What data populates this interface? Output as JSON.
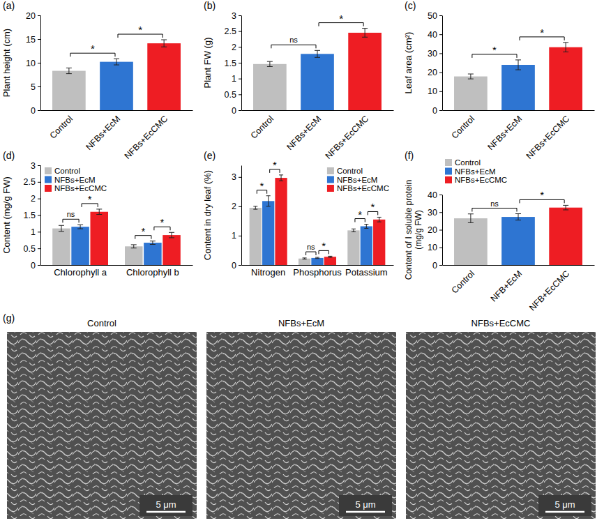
{
  "chart_data": [
    {
      "type": "bar",
      "label": "(a)",
      "y_label": "Plant height (cm)",
      "categories": [
        "Control",
        "NFBs+EcM",
        "NFBs+EcCMC"
      ],
      "values": [
        8.3,
        10.2,
        14.1
      ],
      "errors": [
        0.6,
        0.65,
        0.75
      ],
      "colors": [
        "#bfbfbf",
        "#2e75d2",
        "#ee1d23"
      ],
      "ylim": [
        0,
        20
      ],
      "yticks": [
        0,
        5,
        10,
        15,
        20
      ],
      "annotations": [
        {
          "from": 0,
          "to": 1,
          "text": "*"
        },
        {
          "from": 1,
          "to": 2,
          "text": "*"
        }
      ]
    },
    {
      "type": "bar",
      "label": "(b)",
      "y_label": "Plant FW (g)",
      "categories": [
        "Control",
        "NFBs+EcM",
        "NFBs+EcCMC"
      ],
      "values": [
        1.46,
        1.78,
        2.45
      ],
      "errors": [
        0.08,
        0.11,
        0.14
      ],
      "colors": [
        "#bfbfbf",
        "#2e75d2",
        "#ee1d23"
      ],
      "ylim": [
        0,
        3
      ],
      "yticks": [
        0,
        0.5,
        1,
        1.5,
        2,
        2.5,
        3
      ],
      "annotations": [
        {
          "from": 0,
          "to": 1,
          "text": "ns"
        },
        {
          "from": 1,
          "to": 2,
          "text": "*"
        }
      ]
    },
    {
      "type": "bar",
      "label": "(c)",
      "y_label": "Leaf area (cm²)",
      "categories": [
        "Control",
        "NFBs+EcM",
        "NFBs+EcCMC"
      ],
      "values": [
        17.8,
        23.9,
        33.2
      ],
      "errors": [
        1.3,
        2.6,
        2.5
      ],
      "colors": [
        "#bfbfbf",
        "#2e75d2",
        "#ee1d23"
      ],
      "ylim": [
        0,
        50
      ],
      "yticks": [
        0,
        10,
        20,
        30,
        40,
        50
      ],
      "annotations": [
        {
          "from": 0,
          "to": 1,
          "text": "*"
        },
        {
          "from": 1,
          "to": 2,
          "text": "*"
        }
      ]
    },
    {
      "type": "bar",
      "label": "(d)",
      "y_label": "Content (mg/g FW)",
      "categories": [
        "Chlorophyll a",
        "Chlorophyll b"
      ],
      "series": [
        {
          "name": "Control",
          "color": "#bfbfbf",
          "values": [
            1.1,
            0.56
          ],
          "errors": [
            0.09,
            0.05
          ]
        },
        {
          "name": "NFBs+EcM",
          "color": "#2e75d2",
          "values": [
            1.15,
            0.67
          ],
          "errors": [
            0.06,
            0.05
          ]
        },
        {
          "name": "NFBs+EcCMC",
          "color": "#ee1d23",
          "values": [
            1.6,
            0.9
          ],
          "errors": [
            0.08,
            0.08
          ]
        }
      ],
      "ylim": [
        0,
        3
      ],
      "yticks": [
        0,
        0.5,
        1,
        1.5,
        2,
        2.5,
        3
      ],
      "legend": "upper left",
      "annotations": [
        {
          "category": 0,
          "from": 0,
          "to": 1,
          "text": "ns"
        },
        {
          "category": 0,
          "from": 1,
          "to": 2,
          "text": "*"
        },
        {
          "category": 1,
          "from": 0,
          "to": 1,
          "text": "*"
        },
        {
          "category": 1,
          "from": 1,
          "to": 2,
          "text": "*"
        }
      ]
    },
    {
      "type": "bar",
      "label": "(e)",
      "y_label": "Content in dry leaf (%)",
      "categories": [
        "Nitrogen",
        "Phosphorus",
        "Potassium"
      ],
      "series": [
        {
          "name": "Control",
          "color": "#bfbfbf",
          "values": [
            1.95,
            0.22,
            1.18
          ],
          "errors": [
            0.05,
            0.02,
            0.05
          ]
        },
        {
          "name": "NFBs+EcM",
          "color": "#2e75d2",
          "values": [
            2.18,
            0.24,
            1.32
          ],
          "errors": [
            0.18,
            0.02,
            0.07
          ]
        },
        {
          "name": "NFBs+EcCMC",
          "color": "#ee1d23",
          "values": [
            2.97,
            0.28,
            1.55
          ],
          "errors": [
            0.1,
            0.02,
            0.08
          ]
        }
      ],
      "ylim": [
        0,
        3.4
      ],
      "yticks": [
        0,
        1,
        2,
        3
      ],
      "legend": "upper right",
      "annotations": [
        {
          "category": 0,
          "from": 0,
          "to": 1,
          "text": "*"
        },
        {
          "category": 0,
          "from": 1,
          "to": 2,
          "text": "*"
        },
        {
          "category": 1,
          "from": 0,
          "to": 1,
          "text": "ns"
        },
        {
          "category": 1,
          "from": 1,
          "to": 2,
          "text": "*"
        },
        {
          "category": 2,
          "from": 0,
          "to": 1,
          "text": "*"
        },
        {
          "category": 2,
          "from": 1,
          "to": 2,
          "text": "*"
        }
      ]
    },
    {
      "type": "bar",
      "label": "(f)",
      "y_label": "Content of I soluble protein (mg/g FW)",
      "categories": [
        "Control",
        "NFB+EcM",
        "NFB+EcCMC"
      ],
      "values": [
        26.5,
        27.3,
        32.6
      ],
      "errors": [
        2.5,
        1.8,
        1.3
      ],
      "colors": [
        "#bfbfbf",
        "#2e75d2",
        "#ee1d23"
      ],
      "legend_labels": [
        "Control",
        "NFBs+EcM",
        "NFBs+EcCMC"
      ],
      "legend": "top",
      "ylim": [
        0,
        40
      ],
      "yticks": [
        0,
        10,
        20,
        30,
        40
      ],
      "annotations": [
        {
          "from": 0,
          "to": 1,
          "text": "ns"
        },
        {
          "from": 1,
          "to": 2,
          "text": "*"
        }
      ]
    }
  ],
  "panel_g": {
    "label": "(g)",
    "images": [
      {
        "title": "Control",
        "scale_bar": "5 μm"
      },
      {
        "title": "NFBs+EcM",
        "scale_bar": "5 μm"
      },
      {
        "title": "NFBs+EcCMC",
        "scale_bar": "5 μm"
      }
    ]
  }
}
